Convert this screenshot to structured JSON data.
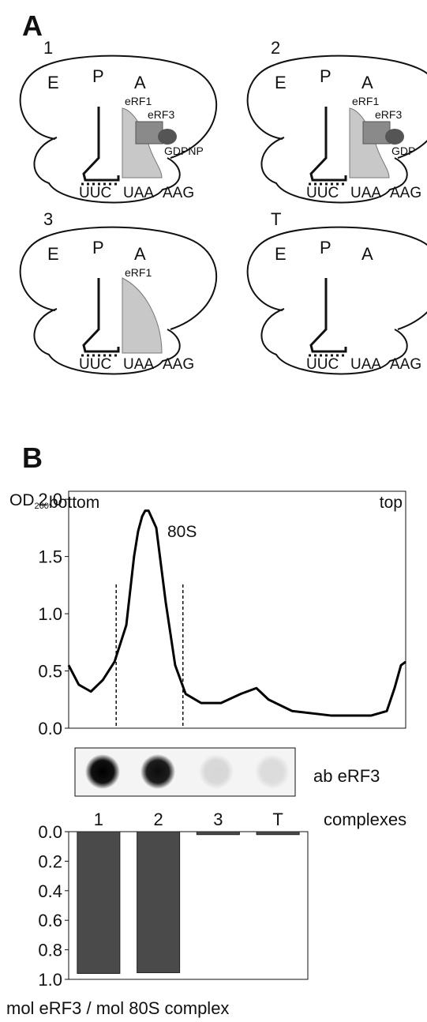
{
  "panels": [
    "A",
    "B"
  ],
  "diagrams": [
    {
      "label": "1",
      "sites": [
        "E",
        "P",
        "A"
      ],
      "factors": [
        "eRF1",
        "eRF3",
        "GDPNP"
      ],
      "codons": [
        "UUC",
        "UAA",
        "AAG"
      ]
    },
    {
      "label": "2",
      "sites": [
        "E",
        "P",
        "A"
      ],
      "factors": [
        "eRF1",
        "eRF3",
        "GDP"
      ],
      "codons": [
        "UUC",
        "UAA",
        "AAG"
      ]
    },
    {
      "label": "3",
      "sites": [
        "E",
        "P",
        "A"
      ],
      "factors": [
        "eRF1"
      ],
      "codons": [
        "UUC",
        "UAA",
        "AAG"
      ]
    },
    {
      "label": "T",
      "sites": [
        "E",
        "P",
        "A"
      ],
      "codons": [
        "UUC",
        "UAA",
        "AAG"
      ]
    }
  ],
  "blot": {
    "label": "ab eRF3",
    "intensities": [
      1,
      0.95,
      0.12,
      0.1
    ]
  },
  "chart_data": [
    {
      "type": "line",
      "y_label": "OD",
      "y_label_sub": "260",
      "left_label": "bottom",
      "right_label": "top",
      "peak_label": "80S",
      "x": [
        0,
        3,
        6.6,
        10.1,
        13.6,
        17.1,
        19.4,
        20.6,
        21.8,
        22.7,
        23.7,
        26,
        28.8,
        31.6,
        34.7,
        39.3,
        45.2,
        51.1,
        55.7,
        59.3,
        66.3,
        78,
        89.7,
        94.4,
        96.7,
        98.6,
        100
      ],
      "values": [
        0.55,
        0.38,
        0.32,
        0.42,
        0.58,
        0.9,
        1.5,
        1.72,
        1.85,
        1.9,
        1.9,
        1.75,
        1.1,
        0.55,
        0.3,
        0.22,
        0.22,
        0.3,
        0.35,
        0.25,
        0.15,
        0.11,
        0.11,
        0.15,
        0.35,
        0.55,
        0.58
      ],
      "xlim": [
        0,
        100
      ],
      "ylim": [
        0,
        2.07
      ],
      "fraction_bounds": [
        14.1,
        33.9
      ],
      "color": "#000000",
      "yticks": [
        {
          "value": 0,
          "label": "0.0"
        },
        {
          "value": 0.5,
          "label": "0.5"
        },
        {
          "value": 1,
          "label": "1.0"
        },
        {
          "value": 1.5,
          "label": "1.5"
        },
        {
          "value": 2,
          "label": "2.0"
        }
      ]
    },
    {
      "type": "bar",
      "categories": [
        "1",
        "2",
        "3",
        "T"
      ],
      "category_axis_label": "complexes",
      "x_label": "mol eRF3 / mol 80S complex",
      "values": [
        0.96,
        0.955,
        0.02,
        0.02
      ],
      "ylim": [
        0,
        1
      ],
      "inverted": true,
      "color": "#4a4a4a",
      "yticks": [
        {
          "value": 0,
          "label": "0.0"
        },
        {
          "value": 0.2,
          "label": "0.2"
        },
        {
          "value": 0.4,
          "label": "0.4"
        },
        {
          "value": 0.6,
          "label": "0.6"
        },
        {
          "value": 0.8,
          "label": "0.8"
        },
        {
          "value": 1,
          "label": "1.0"
        }
      ]
    }
  ]
}
